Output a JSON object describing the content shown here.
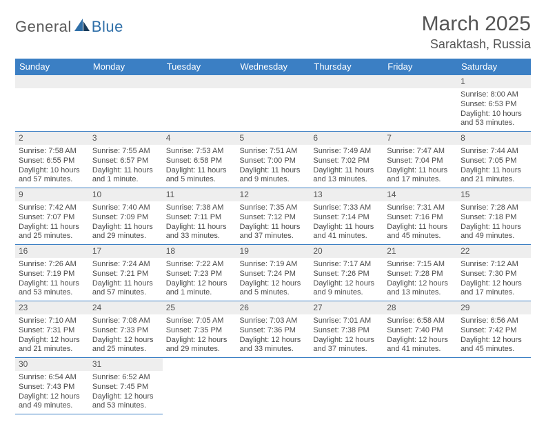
{
  "logo": {
    "text1": "General",
    "text2": "Blue"
  },
  "title": "March 2025",
  "location": "Saraktash, Russia",
  "colors": {
    "header_bg": "#3b7fc4",
    "header_text": "#ffffff",
    "cell_border": "#3b7fc4",
    "daynum_bg": "#eeeeee",
    "body_text": "#4a4a4a",
    "logo_gray": "#5a5a5a",
    "logo_blue": "#2f6fa8"
  },
  "weekdays": [
    "Sunday",
    "Monday",
    "Tuesday",
    "Wednesday",
    "Thursday",
    "Friday",
    "Saturday"
  ],
  "days": [
    {
      "n": 1,
      "sunrise": "8:00 AM",
      "sunset": "6:53 PM",
      "daylight": "10 hours and 53 minutes."
    },
    {
      "n": 2,
      "sunrise": "7:58 AM",
      "sunset": "6:55 PM",
      "daylight": "10 hours and 57 minutes."
    },
    {
      "n": 3,
      "sunrise": "7:55 AM",
      "sunset": "6:57 PM",
      "daylight": "11 hours and 1 minute."
    },
    {
      "n": 4,
      "sunrise": "7:53 AM",
      "sunset": "6:58 PM",
      "daylight": "11 hours and 5 minutes."
    },
    {
      "n": 5,
      "sunrise": "7:51 AM",
      "sunset": "7:00 PM",
      "daylight": "11 hours and 9 minutes."
    },
    {
      "n": 6,
      "sunrise": "7:49 AM",
      "sunset": "7:02 PM",
      "daylight": "11 hours and 13 minutes."
    },
    {
      "n": 7,
      "sunrise": "7:47 AM",
      "sunset": "7:04 PM",
      "daylight": "11 hours and 17 minutes."
    },
    {
      "n": 8,
      "sunrise": "7:44 AM",
      "sunset": "7:05 PM",
      "daylight": "11 hours and 21 minutes."
    },
    {
      "n": 9,
      "sunrise": "7:42 AM",
      "sunset": "7:07 PM",
      "daylight": "11 hours and 25 minutes."
    },
    {
      "n": 10,
      "sunrise": "7:40 AM",
      "sunset": "7:09 PM",
      "daylight": "11 hours and 29 minutes."
    },
    {
      "n": 11,
      "sunrise": "7:38 AM",
      "sunset": "7:11 PM",
      "daylight": "11 hours and 33 minutes."
    },
    {
      "n": 12,
      "sunrise": "7:35 AM",
      "sunset": "7:12 PM",
      "daylight": "11 hours and 37 minutes."
    },
    {
      "n": 13,
      "sunrise": "7:33 AM",
      "sunset": "7:14 PM",
      "daylight": "11 hours and 41 minutes."
    },
    {
      "n": 14,
      "sunrise": "7:31 AM",
      "sunset": "7:16 PM",
      "daylight": "11 hours and 45 minutes."
    },
    {
      "n": 15,
      "sunrise": "7:28 AM",
      "sunset": "7:18 PM",
      "daylight": "11 hours and 49 minutes."
    },
    {
      "n": 16,
      "sunrise": "7:26 AM",
      "sunset": "7:19 PM",
      "daylight": "11 hours and 53 minutes."
    },
    {
      "n": 17,
      "sunrise": "7:24 AM",
      "sunset": "7:21 PM",
      "daylight": "11 hours and 57 minutes."
    },
    {
      "n": 18,
      "sunrise": "7:22 AM",
      "sunset": "7:23 PM",
      "daylight": "12 hours and 1 minute."
    },
    {
      "n": 19,
      "sunrise": "7:19 AM",
      "sunset": "7:24 PM",
      "daylight": "12 hours and 5 minutes."
    },
    {
      "n": 20,
      "sunrise": "7:17 AM",
      "sunset": "7:26 PM",
      "daylight": "12 hours and 9 minutes."
    },
    {
      "n": 21,
      "sunrise": "7:15 AM",
      "sunset": "7:28 PM",
      "daylight": "12 hours and 13 minutes."
    },
    {
      "n": 22,
      "sunrise": "7:12 AM",
      "sunset": "7:30 PM",
      "daylight": "12 hours and 17 minutes."
    },
    {
      "n": 23,
      "sunrise": "7:10 AM",
      "sunset": "7:31 PM",
      "daylight": "12 hours and 21 minutes."
    },
    {
      "n": 24,
      "sunrise": "7:08 AM",
      "sunset": "7:33 PM",
      "daylight": "12 hours and 25 minutes."
    },
    {
      "n": 25,
      "sunrise": "7:05 AM",
      "sunset": "7:35 PM",
      "daylight": "12 hours and 29 minutes."
    },
    {
      "n": 26,
      "sunrise": "7:03 AM",
      "sunset": "7:36 PM",
      "daylight": "12 hours and 33 minutes."
    },
    {
      "n": 27,
      "sunrise": "7:01 AM",
      "sunset": "7:38 PM",
      "daylight": "12 hours and 37 minutes."
    },
    {
      "n": 28,
      "sunrise": "6:58 AM",
      "sunset": "7:40 PM",
      "daylight": "12 hours and 41 minutes."
    },
    {
      "n": 29,
      "sunrise": "6:56 AM",
      "sunset": "7:42 PM",
      "daylight": "12 hours and 45 minutes."
    },
    {
      "n": 30,
      "sunrise": "6:54 AM",
      "sunset": "7:43 PM",
      "daylight": "12 hours and 49 minutes."
    },
    {
      "n": 31,
      "sunrise": "6:52 AM",
      "sunset": "7:45 PM",
      "daylight": "12 hours and 53 minutes."
    }
  ],
  "labels": {
    "sunrise": "Sunrise:",
    "sunset": "Sunset:",
    "daylight": "Daylight:"
  },
  "layout": {
    "first_weekday_index": 6,
    "rows": 6,
    "cols": 7
  }
}
